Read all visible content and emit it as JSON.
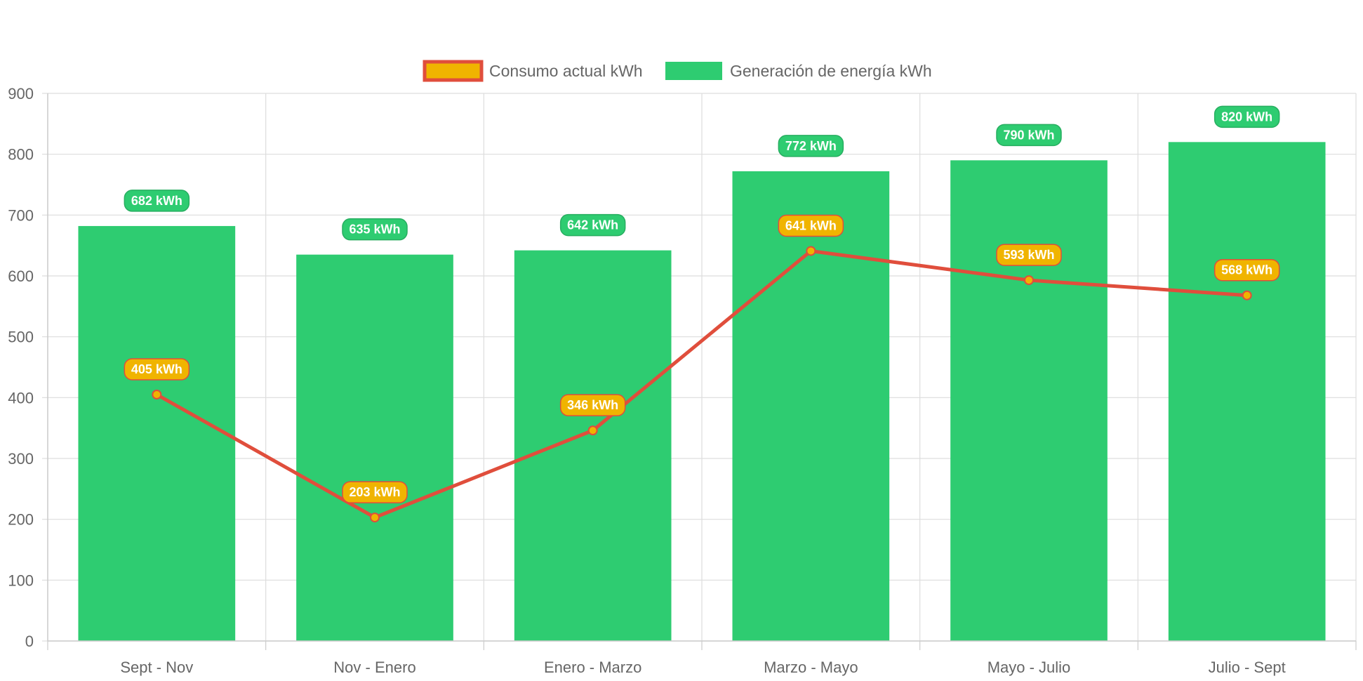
{
  "chart_data": {
    "type": "bar",
    "categories": [
      "Sept - Nov",
      "Nov - Enero",
      "Enero - Marzo",
      "Marzo - Mayo",
      "Mayo - Julio",
      "Julio - Sept"
    ],
    "series": [
      {
        "name": "Consumo actual kWh",
        "type": "line",
        "values": [
          405,
          203,
          346,
          641,
          593,
          568
        ],
        "value_labels": [
          "405 kWh",
          "203 kWh",
          "346 kWh",
          "641 kWh",
          "593 kWh",
          "568 kWh"
        ],
        "color": "#f0b400",
        "border_color": "#e04e3c"
      },
      {
        "name": "Generación de energía kWh",
        "type": "bar",
        "values": [
          682,
          635,
          642,
          772,
          790,
          820
        ],
        "value_labels": [
          "682 kWh",
          "635 kWh",
          "642 kWh",
          "772 kWh",
          "790 kWh",
          "820 kWh"
        ],
        "color": "#2ecc71",
        "border_color": "#27ae60"
      }
    ],
    "ylim": [
      0,
      900
    ],
    "yticks": [
      "0",
      "100",
      "200",
      "300",
      "400",
      "500",
      "600",
      "700",
      "800",
      "900"
    ],
    "grid": true,
    "legend_position": "top",
    "grid_color": "#dddddd",
    "text_color": "#666666"
  }
}
